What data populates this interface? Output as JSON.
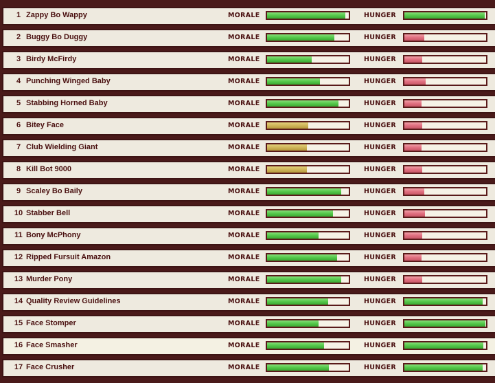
{
  "labels": {
    "morale": "MORALE",
    "hunger": "HUNGER"
  },
  "colors": {
    "good": "#55c84a",
    "medium": "#cfb55a",
    "low": "#e07080",
    "frame": "#3d1414",
    "row_bg": "#eeeadf"
  },
  "minions": [
    {
      "num": "1",
      "name": "Zappy Bo Wappy",
      "morale": 0.96,
      "morale_level": "green",
      "hunger": 0.98,
      "hunger_level": "green"
    },
    {
      "num": "2",
      "name": "Buggy Bo Duggy",
      "morale": 0.82,
      "morale_level": "green",
      "hunger": 0.24,
      "hunger_level": "red"
    },
    {
      "num": "3",
      "name": "Birdy McFirdy",
      "morale": 0.55,
      "morale_level": "green",
      "hunger": 0.22,
      "hunger_level": "red"
    },
    {
      "num": "4",
      "name": "Punching Winged Baby",
      "morale": 0.65,
      "morale_level": "green",
      "hunger": 0.26,
      "hunger_level": "red"
    },
    {
      "num": "5",
      "name": "Stabbing Horned Baby",
      "morale": 0.87,
      "morale_level": "green",
      "hunger": 0.21,
      "hunger_level": "red"
    },
    {
      "num": "6",
      "name": "Bitey Face",
      "morale": 0.5,
      "morale_level": "gold",
      "hunger": 0.22,
      "hunger_level": "red"
    },
    {
      "num": "7",
      "name": "Club Wielding Giant",
      "morale": 0.49,
      "morale_level": "gold",
      "hunger": 0.21,
      "hunger_level": "red"
    },
    {
      "num": "8",
      "name": "Kill Bot 9000",
      "morale": 0.49,
      "morale_level": "gold",
      "hunger": 0.22,
      "hunger_level": "red"
    },
    {
      "num": "9",
      "name": "Scaley Bo Baily",
      "morale": 0.91,
      "morale_level": "green",
      "hunger": 0.24,
      "hunger_level": "red"
    },
    {
      "num": "10",
      "name": "Stabber Bell",
      "morale": 0.81,
      "morale_level": "green",
      "hunger": 0.25,
      "hunger_level": "red"
    },
    {
      "num": "11",
      "name": "Bony McPhony",
      "morale": 0.63,
      "morale_level": "green",
      "hunger": 0.22,
      "hunger_level": "red"
    },
    {
      "num": "12",
      "name": "Ripped Fursuit Amazon",
      "morale": 0.86,
      "morale_level": "green",
      "hunger": 0.21,
      "hunger_level": "red"
    },
    {
      "num": "13",
      "name": "Murder Pony",
      "morale": 0.91,
      "morale_level": "green",
      "hunger": 0.22,
      "hunger_level": "red"
    },
    {
      "num": "14",
      "name": "Quality Review Guidelines",
      "morale": 0.75,
      "morale_level": "green",
      "hunger": 0.96,
      "hunger_level": "green"
    },
    {
      "num": "15",
      "name": "Face Stomper",
      "morale": 0.63,
      "morale_level": "green",
      "hunger": 0.99,
      "hunger_level": "green"
    },
    {
      "num": "16",
      "name": "Face Smasher",
      "morale": 0.7,
      "morale_level": "green",
      "hunger": 0.97,
      "hunger_level": "green"
    },
    {
      "num": "17",
      "name": "Face Crusher",
      "morale": 0.76,
      "morale_level": "green",
      "hunger": 0.96,
      "hunger_level": "green"
    }
  ]
}
